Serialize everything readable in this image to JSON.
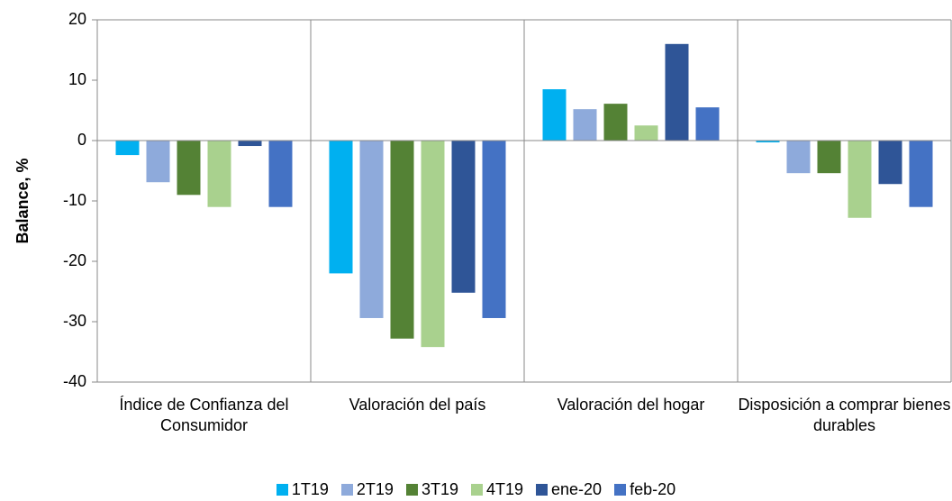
{
  "chart_data": {
    "type": "bar",
    "y_label": "Balance, %",
    "categories": [
      "Índice de Confianza del Consumidor",
      "Valoración del país",
      "Valoración del hogar",
      "Disposición a comprar bienes durables"
    ],
    "series": [
      {
        "name": "1T19",
        "color": "#00b0f0",
        "values": [
          -2.4,
          -22,
          8.5,
          -0.3
        ]
      },
      {
        "name": "2T19",
        "color": "#8eaadb",
        "values": [
          -6.9,
          -29.4,
          5.2,
          -5.4
        ]
      },
      {
        "name": "3T19",
        "color": "#548235",
        "values": [
          -9,
          -32.8,
          6.1,
          -5.4
        ]
      },
      {
        "name": "4T19",
        "color": "#a9d18e",
        "values": [
          -11,
          -34.2,
          2.5,
          -12.8
        ]
      },
      {
        "name": "ene-20",
        "color": "#2f5597",
        "values": [
          -0.9,
          -25.2,
          16,
          -7.2
        ]
      },
      {
        "name": "feb-20",
        "color": "#4472c4",
        "values": [
          -11,
          -29.4,
          5.5,
          -11
        ]
      }
    ],
    "ylim": [
      -40,
      20
    ],
    "yticks": [
      -40,
      -30,
      -20,
      -10,
      0,
      10,
      20
    ]
  }
}
